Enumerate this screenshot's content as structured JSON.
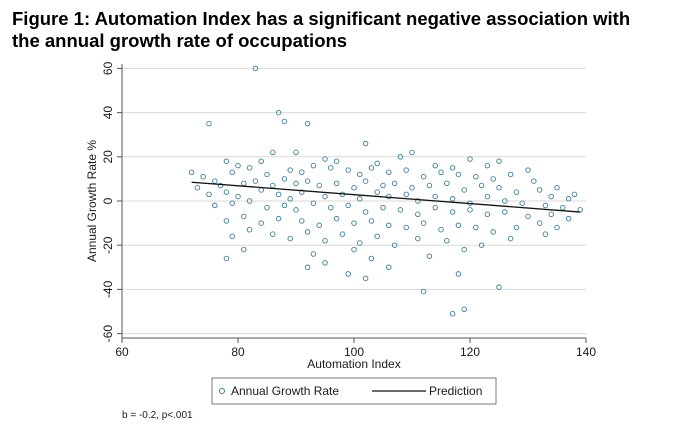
{
  "title": "Figure 1: Automation Index has a significant negative association with the annual growth rate of occupations",
  "footnote": "b = -0.2, p<.001",
  "colors": {
    "scatter_marker": "#3f7f99",
    "prediction_line": "#111111",
    "grid": "#d9d9d9",
    "axis": "#555555"
  },
  "chart_data": {
    "type": "scatter",
    "xlabel": "Automation Index",
    "ylabel": "Annual Growth Rate %",
    "xlim": [
      60,
      140
    ],
    "ylim": [
      -62,
      62
    ],
    "xticks": [
      60,
      80,
      100,
      120,
      140
    ],
    "yticks": [
      -60,
      -40,
      -20,
      0,
      20,
      40,
      60
    ],
    "grid": true,
    "legend_position": "bottom",
    "series": [
      {
        "name": "Annual Growth Rate",
        "type": "scatter",
        "marker": "hollow-circle",
        "points": [
          [
            83,
            60
          ],
          [
            75,
            35
          ],
          [
            87,
            40
          ],
          [
            88,
            36
          ],
          [
            92,
            35
          ],
          [
            102,
            26
          ],
          [
            110,
            22
          ],
          [
            108,
            20
          ],
          [
            90,
            22
          ],
          [
            86,
            22
          ],
          [
            95,
            19
          ],
          [
            97,
            18
          ],
          [
            120,
            19
          ],
          [
            125,
            18
          ],
          [
            130,
            14
          ],
          [
            78,
            18
          ],
          [
            72,
            13
          ],
          [
            80,
            16
          ],
          [
            84,
            18
          ],
          [
            93,
            16
          ],
          [
            104,
            17
          ],
          [
            114,
            16
          ],
          [
            117,
            15
          ],
          [
            123,
            16
          ],
          [
            74,
            11
          ],
          [
            76,
            9
          ],
          [
            79,
            13
          ],
          [
            82,
            15
          ],
          [
            85,
            12
          ],
          [
            89,
            14
          ],
          [
            91,
            13
          ],
          [
            96,
            15
          ],
          [
            99,
            14
          ],
          [
            101,
            12
          ],
          [
            103,
            15
          ],
          [
            106,
            13
          ],
          [
            109,
            14
          ],
          [
            112,
            11
          ],
          [
            115,
            13
          ],
          [
            118,
            12
          ],
          [
            121,
            11
          ],
          [
            124,
            10
          ],
          [
            127,
            12
          ],
          [
            131,
            9
          ],
          [
            135,
            6
          ],
          [
            138,
            3
          ],
          [
            73,
            6
          ],
          [
            77,
            7
          ],
          [
            81,
            8
          ],
          [
            83,
            9
          ],
          [
            86,
            7
          ],
          [
            88,
            10
          ],
          [
            90,
            8
          ],
          [
            92,
            9
          ],
          [
            94,
            7
          ],
          [
            97,
            8
          ],
          [
            100,
            6
          ],
          [
            102,
            9
          ],
          [
            105,
            7
          ],
          [
            107,
            8
          ],
          [
            110,
            6
          ],
          [
            113,
            7
          ],
          [
            116,
            8
          ],
          [
            119,
            5
          ],
          [
            122,
            7
          ],
          [
            125,
            6
          ],
          [
            128,
            4
          ],
          [
            132,
            5
          ],
          [
            134,
            2
          ],
          [
            137,
            1
          ],
          [
            75,
            3
          ],
          [
            78,
            4
          ],
          [
            80,
            2
          ],
          [
            84,
            5
          ],
          [
            87,
            3
          ],
          [
            89,
            1
          ],
          [
            91,
            4
          ],
          [
            95,
            2
          ],
          [
            98,
            3
          ],
          [
            101,
            1
          ],
          [
            104,
            4
          ],
          [
            106,
            2
          ],
          [
            109,
            3
          ],
          [
            111,
            0
          ],
          [
            114,
            2
          ],
          [
            117,
            1
          ],
          [
            120,
            -1
          ],
          [
            123,
            2
          ],
          [
            126,
            0
          ],
          [
            129,
            -1
          ],
          [
            133,
            -2
          ],
          [
            136,
            -3
          ],
          [
            139,
            -4
          ],
          [
            76,
            -2
          ],
          [
            79,
            -1
          ],
          [
            82,
            0
          ],
          [
            85,
            -3
          ],
          [
            88,
            -2
          ],
          [
            90,
            -4
          ],
          [
            93,
            -1
          ],
          [
            96,
            -3
          ],
          [
            99,
            -2
          ],
          [
            102,
            -5
          ],
          [
            105,
            -3
          ],
          [
            108,
            -4
          ],
          [
            111,
            -6
          ],
          [
            114,
            -3
          ],
          [
            117,
            -5
          ],
          [
            120,
            -4
          ],
          [
            123,
            -6
          ],
          [
            126,
            -5
          ],
          [
            130,
            -7
          ],
          [
            134,
            -6
          ],
          [
            137,
            -8
          ],
          [
            78,
            -9
          ],
          [
            81,
            -7
          ],
          [
            84,
            -10
          ],
          [
            87,
            -8
          ],
          [
            91,
            -9
          ],
          [
            94,
            -11
          ],
          [
            97,
            -8
          ],
          [
            100,
            -10
          ],
          [
            103,
            -9
          ],
          [
            106,
            -11
          ],
          [
            109,
            -12
          ],
          [
            112,
            -10
          ],
          [
            115,
            -13
          ],
          [
            118,
            -11
          ],
          [
            121,
            -12
          ],
          [
            124,
            -14
          ],
          [
            128,
            -12
          ],
          [
            132,
            -10
          ],
          [
            135,
            -12
          ],
          [
            79,
            -16
          ],
          [
            82,
            -13
          ],
          [
            86,
            -15
          ],
          [
            89,
            -17
          ],
          [
            92,
            -14
          ],
          [
            95,
            -18
          ],
          [
            98,
            -15
          ],
          [
            101,
            -19
          ],
          [
            104,
            -16
          ],
          [
            107,
            -20
          ],
          [
            111,
            -17
          ],
          [
            116,
            -18
          ],
          [
            119,
            -22
          ],
          [
            122,
            -20
          ],
          [
            127,
            -17
          ],
          [
            133,
            -15
          ],
          [
            78,
            -26
          ],
          [
            81,
            -22
          ],
          [
            93,
            -24
          ],
          [
            95,
            -28
          ],
          [
            100,
            -22
          ],
          [
            103,
            -26
          ],
          [
            106,
            -30
          ],
          [
            99,
            -33
          ],
          [
            102,
            -35
          ],
          [
            92,
            -30
          ],
          [
            112,
            -41
          ],
          [
            117,
            -51
          ],
          [
            119,
            -49
          ],
          [
            125,
            -39
          ],
          [
            118,
            -33
          ],
          [
            113,
            -25
          ]
        ]
      },
      {
        "name": "Prediction",
        "type": "line",
        "points": [
          [
            72,
            8.5
          ],
          [
            139,
            -5
          ]
        ]
      }
    ]
  }
}
